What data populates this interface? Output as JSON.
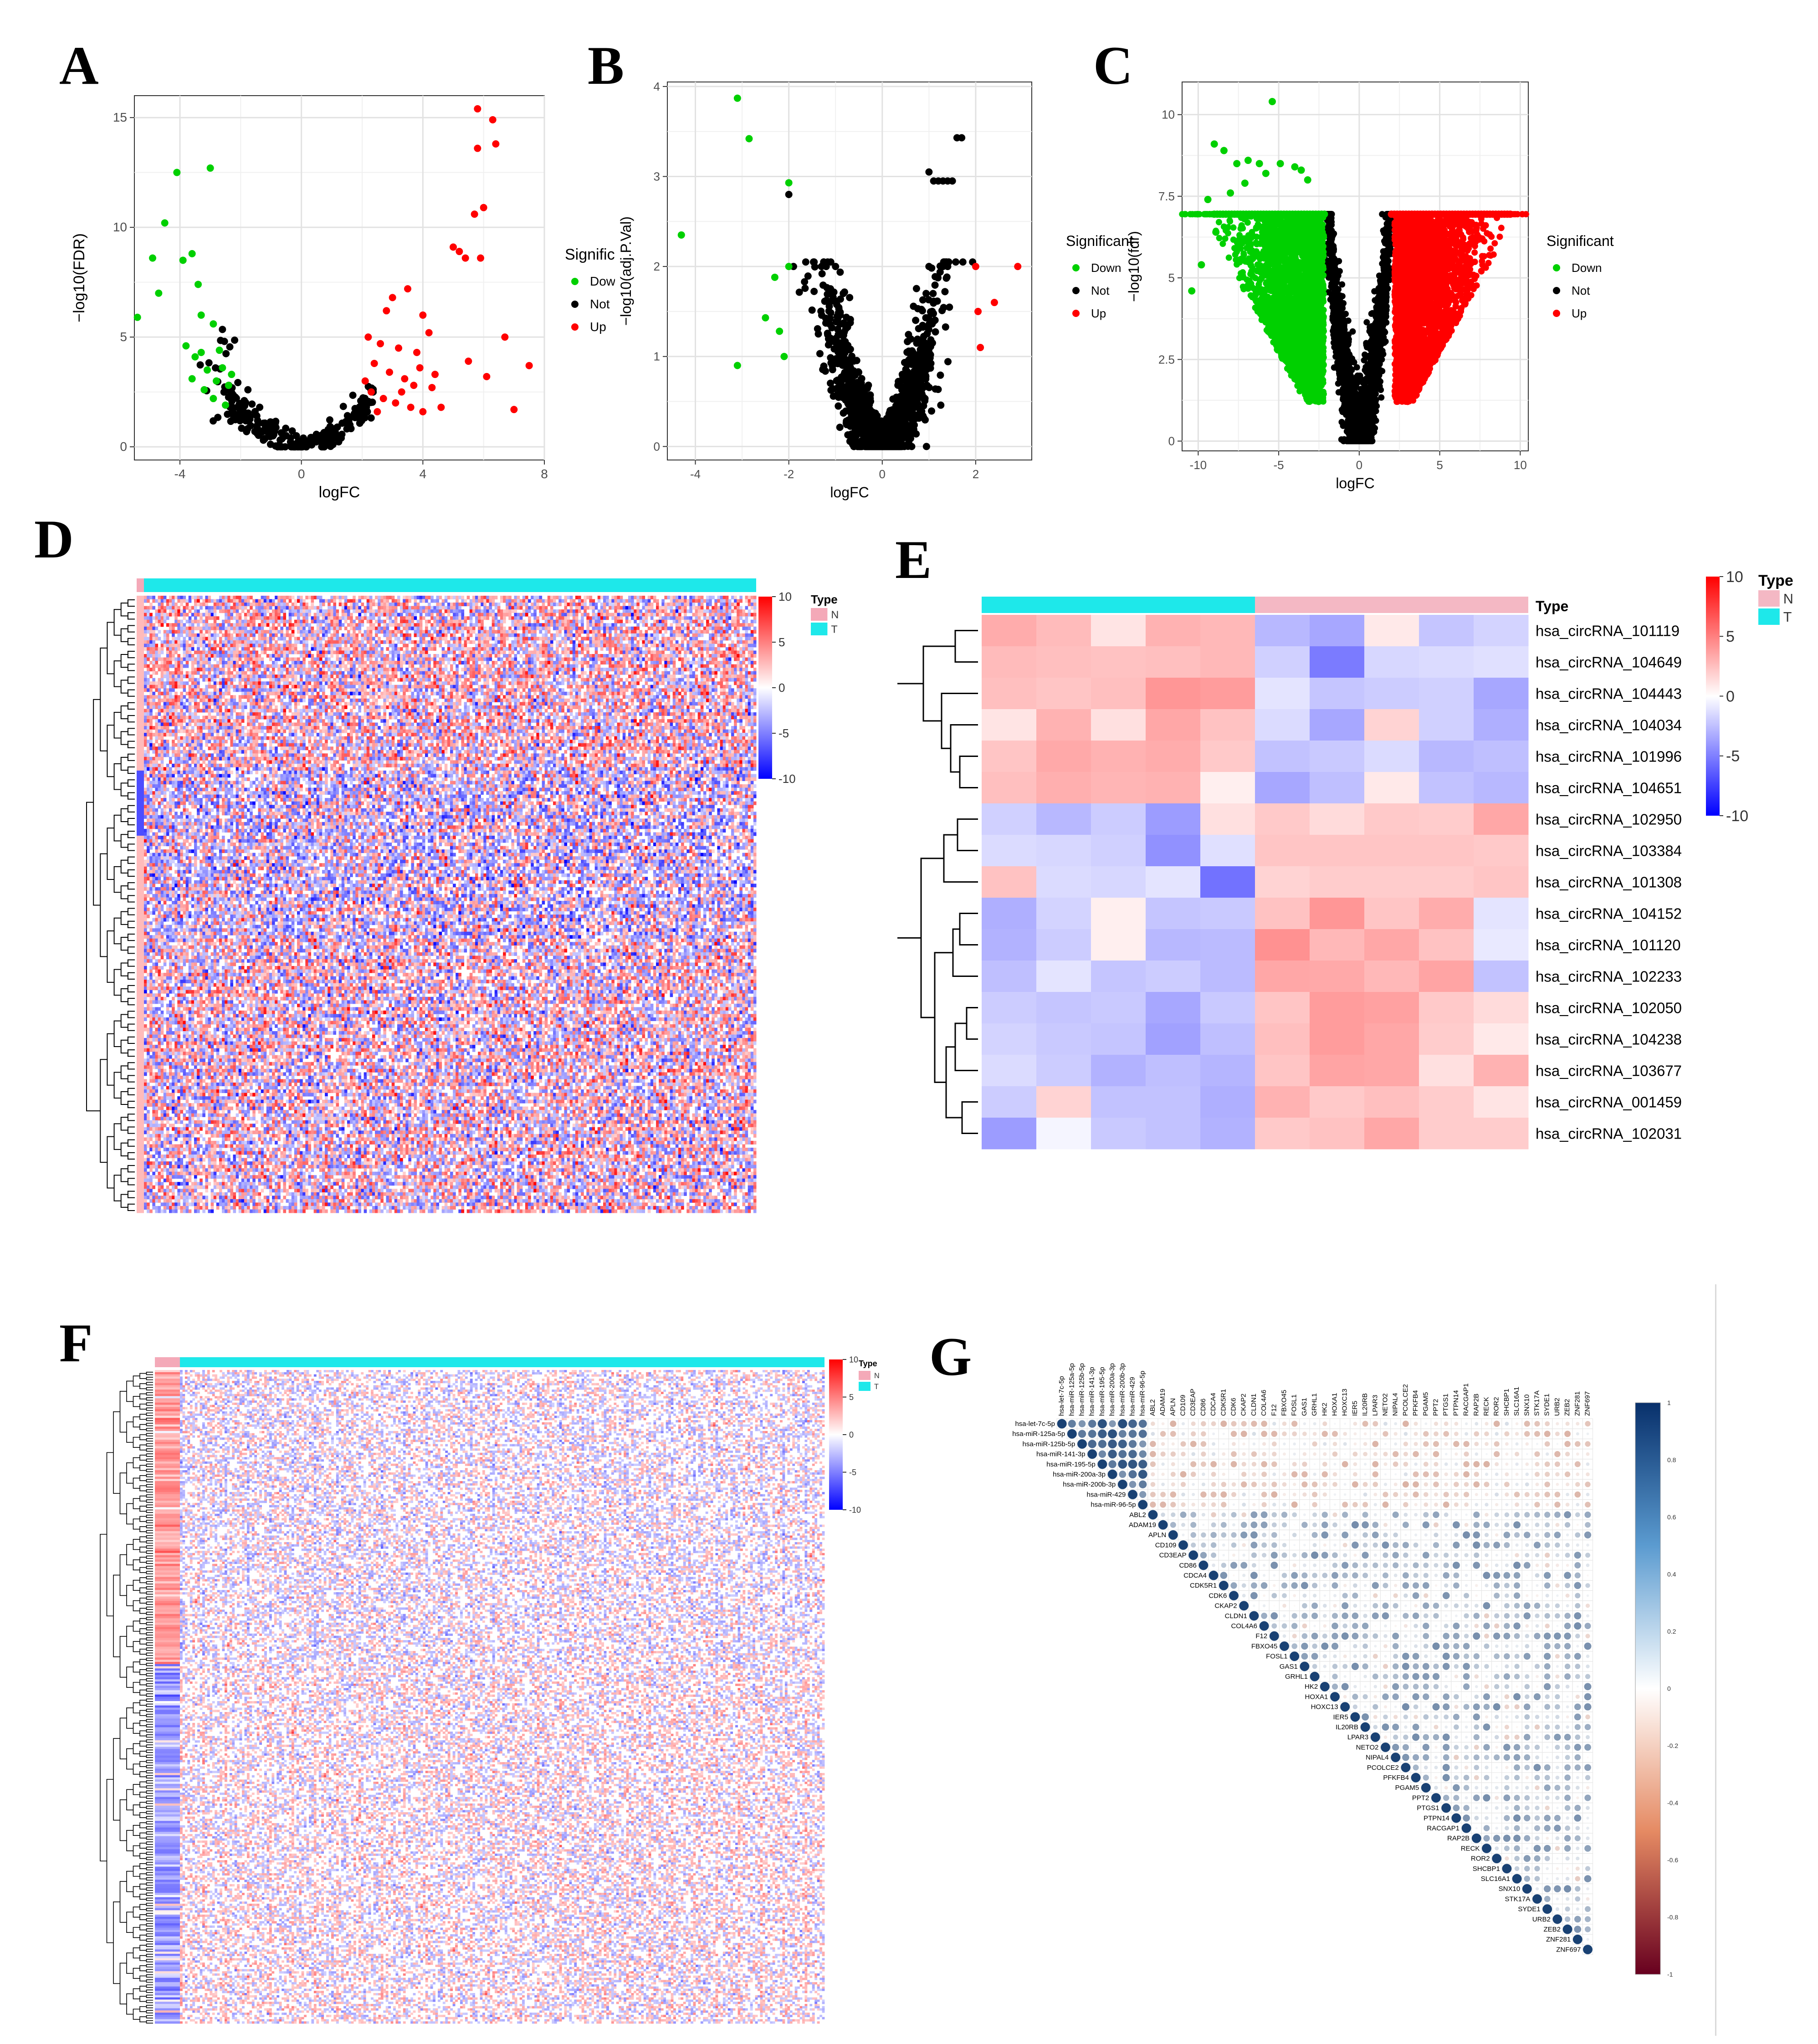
{
  "chart_data": [
    {
      "panel": "A",
      "type": "scatter",
      "xlabel": "logFC",
      "ylabel": "−log10(FDR)",
      "xlim": [
        -5.5,
        8
      ],
      "ylim": [
        -0.6,
        16
      ],
      "xticks": [
        -4,
        0,
        4,
        8
      ],
      "yticks": [
        0,
        5,
        10,
        15
      ],
      "legend": {
        "title": "Significant",
        "entries": [
          {
            "label": "Down",
            "color": "#00d000"
          },
          {
            "label": "Not",
            "color": "#000000"
          },
          {
            "label": "Up",
            "color": "#ff0000"
          }
        ]
      },
      "highlight": {
        "down": [
          [
            -5.4,
            5.9
          ],
          [
            -4.9,
            8.6
          ],
          [
            -4.7,
            7.0
          ],
          [
            -4.5,
            10.2
          ],
          [
            -4.1,
            12.5
          ],
          [
            -3.9,
            8.5
          ],
          [
            -3.6,
            8.8
          ],
          [
            -3.4,
            7.4
          ],
          [
            -3.3,
            6.0
          ],
          [
            -3.0,
            12.7
          ],
          [
            -2.9,
            5.6
          ],
          [
            -3.8,
            4.6
          ],
          [
            -3.5,
            4.1
          ],
          [
            -3.1,
            3.5
          ],
          [
            -2.8,
            3.0
          ],
          [
            -2.6,
            3.6
          ],
          [
            -2.4,
            2.8
          ],
          [
            -3.2,
            2.6
          ],
          [
            -2.9,
            2.2
          ],
          [
            -2.5,
            1.9
          ],
          [
            -3.6,
            3.1
          ],
          [
            -2.7,
            4.4
          ],
          [
            -2.3,
            3.3
          ],
          [
            -3.3,
            4.3
          ]
        ],
        "up": [
          [
            5.8,
            15.4
          ],
          [
            6.3,
            14.9
          ],
          [
            6.4,
            13.8
          ],
          [
            5.8,
            13.6
          ],
          [
            6.0,
            10.9
          ],
          [
            5.7,
            10.6
          ],
          [
            5.0,
            9.1
          ],
          [
            5.2,
            8.9
          ],
          [
            5.4,
            8.6
          ],
          [
            5.9,
            8.6
          ],
          [
            6.7,
            5.0
          ],
          [
            5.5,
            3.9
          ],
          [
            6.1,
            3.2
          ],
          [
            7.5,
            3.7
          ],
          [
            7.0,
            1.7
          ],
          [
            3.5,
            7.2
          ],
          [
            3.0,
            6.8
          ],
          [
            2.8,
            6.2
          ],
          [
            4.0,
            6.0
          ],
          [
            2.2,
            5.0
          ],
          [
            2.6,
            4.7
          ],
          [
            3.2,
            4.5
          ],
          [
            3.8,
            4.3
          ],
          [
            4.2,
            5.2
          ],
          [
            2.4,
            3.8
          ],
          [
            2.9,
            3.4
          ],
          [
            3.4,
            3.1
          ],
          [
            3.7,
            2.8
          ],
          [
            4.3,
            2.7
          ],
          [
            2.3,
            2.5
          ],
          [
            2.7,
            2.2
          ],
          [
            3.1,
            2.0
          ],
          [
            3.6,
            1.8
          ],
          [
            4.0,
            1.6
          ],
          [
            4.6,
            1.8
          ],
          [
            2.5,
            1.6
          ],
          [
            3.3,
            2.5
          ],
          [
            2.1,
            3.0
          ],
          [
            3.9,
            3.6
          ],
          [
            4.4,
            3.3
          ]
        ]
      }
    },
    {
      "panel": "B",
      "type": "scatter",
      "xlabel": "logFC",
      "ylabel": "−log10(adj.P.Val)",
      "xlim": [
        -4.6,
        3.2
      ],
      "ylim": [
        -0.15,
        4.05
      ],
      "xticks": [
        -4,
        -2,
        0,
        2
      ],
      "yticks": [
        0,
        1,
        2,
        3,
        4
      ],
      "legend": {
        "title": "Significant",
        "entries": [
          {
            "label": "Down",
            "color": "#00d000"
          },
          {
            "label": "Not",
            "color": "#000000"
          },
          {
            "label": "Up",
            "color": "#ff0000"
          }
        ]
      },
      "highlight": {
        "down": [
          [
            -3.1,
            3.87
          ],
          [
            -2.85,
            3.42
          ],
          [
            -4.3,
            2.35
          ],
          [
            -2.0,
            2.93
          ],
          [
            -2.0,
            2.0
          ],
          [
            -2.3,
            1.88
          ],
          [
            -2.5,
            1.43
          ],
          [
            -2.2,
            1.28
          ],
          [
            -3.1,
            0.9
          ],
          [
            -2.1,
            1.0
          ]
        ],
        "up": [
          [
            2.0,
            2.0
          ],
          [
            2.9,
            2.0
          ],
          [
            2.05,
            1.5
          ],
          [
            2.4,
            1.6
          ],
          [
            2.1,
            1.1
          ]
        ]
      }
    },
    {
      "panel": "C",
      "type": "scatter",
      "xlabel": "logFC",
      "ylabel": "−log10(fdr)",
      "xlim": [
        -11,
        10.5
      ],
      "ylim": [
        -0.3,
        11.0
      ],
      "xticks": [
        -10,
        -5,
        0,
        5,
        10
      ],
      "yticks": [
        0.0,
        2.5,
        5.0,
        7.5,
        10.0
      ],
      "legend": {
        "title": "Significant",
        "entries": [
          {
            "label": "Down",
            "color": "#00d000"
          },
          {
            "label": "Not",
            "color": "#000000"
          },
          {
            "label": "Up",
            "color": "#ff0000"
          }
        ]
      }
    },
    {
      "panel": "D",
      "type": "heatmap",
      "legend": {
        "title": "Type",
        "entries": [
          {
            "label": "N",
            "color": "#f4a9b8"
          },
          {
            "label": "T",
            "color": "#1ee8ea"
          }
        ]
      },
      "scale_ticks": [
        10,
        5,
        0,
        -5,
        -10
      ]
    },
    {
      "panel": "E",
      "type": "heatmap",
      "legend": {
        "title": "Type",
        "entries": [
          {
            "label": "N",
            "color": "#f4b8c4"
          },
          {
            "label": "T",
            "color": "#1ee8ea"
          }
        ]
      },
      "annotation_label": "Type",
      "scale_ticks": [
        10,
        5,
        0,
        -5,
        -10
      ],
      "rows": [
        "hsa_circRNA_101119",
        "hsa_circRNA_104649",
        "hsa_circRNA_104443",
        "hsa_circRNA_104034",
        "hsa_circRNA_101996",
        "hsa_circRNA_104651",
        "hsa_circRNA_102950",
        "hsa_circRNA_103384",
        "hsa_circRNA_101308",
        "hsa_circRNA_104152",
        "hsa_circRNA_101120",
        "hsa_circRNA_102233",
        "hsa_circRNA_102050",
        "hsa_circRNA_104238",
        "hsa_circRNA_103677",
        "hsa_circRNA_001459",
        "hsa_circRNA_102031"
      ],
      "groups": [
        "T",
        "T",
        "T",
        "T",
        "T",
        "N",
        "N",
        "N",
        "N",
        "N"
      ],
      "values": [
        [
          2.0,
          1.5,
          0.4,
          1.8,
          1.6,
          -1.6,
          -2.2,
          0.3,
          -1.2,
          -0.8
        ],
        [
          1.5,
          1.4,
          1.3,
          1.4,
          1.6,
          -0.9,
          -3.9,
          -0.7,
          -0.6,
          -0.5
        ],
        [
          1.4,
          1.2,
          1.4,
          2.8,
          2.6,
          -0.4,
          -1.2,
          -1.0,
          -0.9,
          -2.2
        ],
        [
          0.4,
          1.8,
          0.5,
          2.2,
          1.3,
          -0.6,
          -2.2,
          0.8,
          -0.9,
          -1.9
        ],
        [
          1.2,
          2.1,
          1.8,
          2.0,
          1.1,
          -1.3,
          -1.1,
          -0.6,
          -1.6,
          -1.4
        ],
        [
          1.4,
          1.9,
          1.7,
          1.8,
          0.2,
          -2.2,
          -1.4,
          0.3,
          -1.3,
          -1.6
        ],
        [
          -0.9,
          -1.6,
          -1.0,
          -2.6,
          0.5,
          1.1,
          0.6,
          1.1,
          1.0,
          2.2
        ],
        [
          -0.6,
          -0.7,
          -0.9,
          -3.0,
          -0.5,
          1.2,
          1.2,
          1.2,
          1.2,
          1.1
        ],
        [
          1.3,
          -0.6,
          -0.7,
          -0.4,
          -4.3,
          0.8,
          1.0,
          1.0,
          1.0,
          1.2
        ],
        [
          -1.9,
          -0.8,
          0.2,
          -1.2,
          -1.1,
          1.3,
          2.8,
          1.2,
          2.0,
          -0.4
        ],
        [
          -1.8,
          -1.0,
          0.2,
          -1.6,
          -1.5,
          3.0,
          1.6,
          2.2,
          1.3,
          -0.3
        ],
        [
          -1.4,
          -0.4,
          -1.2,
          -1.0,
          -1.5,
          2.2,
          2.1,
          1.6,
          2.3,
          -1.3
        ],
        [
          -1.0,
          -1.2,
          -1.1,
          -2.2,
          -1.1,
          1.2,
          2.6,
          2.4,
          1.1,
          0.6
        ],
        [
          -0.8,
          -1.1,
          -1.2,
          -2.4,
          -1.4,
          1.4,
          2.6,
          2.2,
          1.0,
          0.3
        ],
        [
          -0.6,
          -1.0,
          -1.8,
          -1.4,
          -1.7,
          1.2,
          2.3,
          2.2,
          0.5,
          1.8
        ],
        [
          -1.0,
          0.8,
          -1.3,
          -1.3,
          -1.9,
          1.8,
          1.1,
          1.4,
          1.0,
          0.4
        ],
        [
          -2.6,
          -0.1,
          -1.1,
          -1.3,
          -1.8,
          1.1,
          1.3,
          2.2,
          1.0,
          1.0
        ]
      ]
    },
    {
      "panel": "F",
      "type": "heatmap",
      "legend": {
        "title": "Type",
        "entries": [
          {
            "label": "N",
            "color": "#f4a9b8"
          },
          {
            "label": "T",
            "color": "#1ee8ea"
          }
        ]
      },
      "scale_ticks": [
        10,
        5,
        0,
        -5,
        -10
      ]
    },
    {
      "panel": "G",
      "type": "heatmap",
      "variables": [
        "hsa-let-7c-5p",
        "hsa-miR-125a-5p",
        "hsa-miR-125b-5p",
        "hsa-miR-141-3p",
        "hsa-miR-195-5p",
        "hsa-miR-200a-3p",
        "hsa-miR-200b-3p",
        "hsa-miR-429",
        "hsa-miR-96-5p",
        "ABL2",
        "ADAM19",
        "APLN",
        "CD109",
        "CD3EAP",
        "CD86",
        "CDCA4",
        "CDK5R1",
        "CDK6",
        "CKAP2",
        "CLDN1",
        "COL4A6",
        "F12",
        "FBXO45",
        "FOSL1",
        "GAS1",
        "GRHL1",
        "HK2",
        "HOXA1",
        "HOXC13",
        "IER5",
        "IL20RB",
        "LPAR3",
        "NETO2",
        "NIPAL4",
        "PCOLCE2",
        "PFKFB4",
        "PGAM5",
        "PPT2",
        "PTGS1",
        "PTPN14",
        "RACGAP1",
        "RAP2B",
        "RECK",
        "ROR2",
        "SHCBP1",
        "SLC16A1",
        "SNX10",
        "STK17A",
        "SYDE1",
        "URB2",
        "ZEB2",
        "ZNF281",
        "ZNF697"
      ],
      "scale_ticks": [
        1,
        0.8,
        0.6,
        0.4,
        0.2,
        0,
        -0.2,
        -0.4,
        -0.6,
        -0.8,
        -1
      ]
    }
  ],
  "panel_labels": [
    "A",
    "B",
    "C",
    "D",
    "E",
    "F",
    "G"
  ]
}
